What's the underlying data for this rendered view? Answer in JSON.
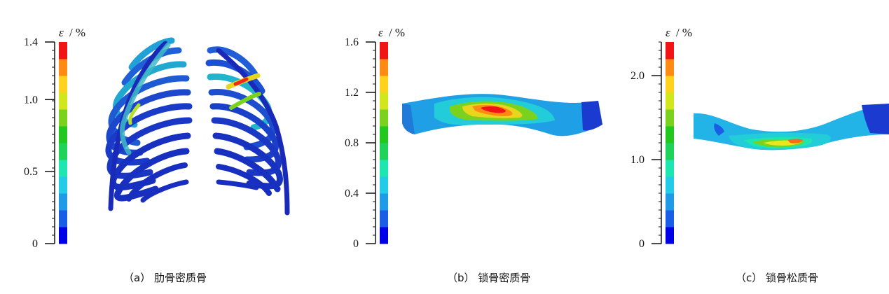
{
  "colorbar": {
    "symbol": "ε",
    "unit": "/ %",
    "colors": [
      "#0000e8",
      "#1a5ee6",
      "#1f9ae6",
      "#22cce6",
      "#1ee6b0",
      "#1ed25a",
      "#22c81e",
      "#7ad21e",
      "#d2e61e",
      "#ffd21e",
      "#ff8a14",
      "#f01414"
    ]
  },
  "panels": [
    {
      "id": "a",
      "caption": "（a） 肋骨密质骨",
      "ticks": [
        {
          "label": "1.4",
          "value": 1.4
        },
        {
          "label": "1.0",
          "value": 1.0
        },
        {
          "label": "0.5",
          "value": 0.5
        },
        {
          "label": "0",
          "value": 0
        }
      ],
      "range": [
        0,
        1.4
      ]
    },
    {
      "id": "b",
      "caption": "（b） 锁骨密质骨",
      "ticks": [
        {
          "label": "1.6",
          "value": 1.6
        },
        {
          "label": "1.2",
          "value": 1.2
        },
        {
          "label": "0.8",
          "value": 0.8
        },
        {
          "label": "0.4",
          "value": 0.4
        },
        {
          "label": "0",
          "value": 0
        }
      ],
      "range": [
        0,
        1.6
      ]
    },
    {
      "id": "c",
      "caption": "（c） 锁骨松质骨",
      "ticks": [
        {
          "label": "2.0",
          "value": 2.0
        },
        {
          "label": "1.0",
          "value": 1.0
        },
        {
          "label": "0",
          "value": 0
        }
      ],
      "range": [
        0,
        2.4
      ]
    }
  ]
}
